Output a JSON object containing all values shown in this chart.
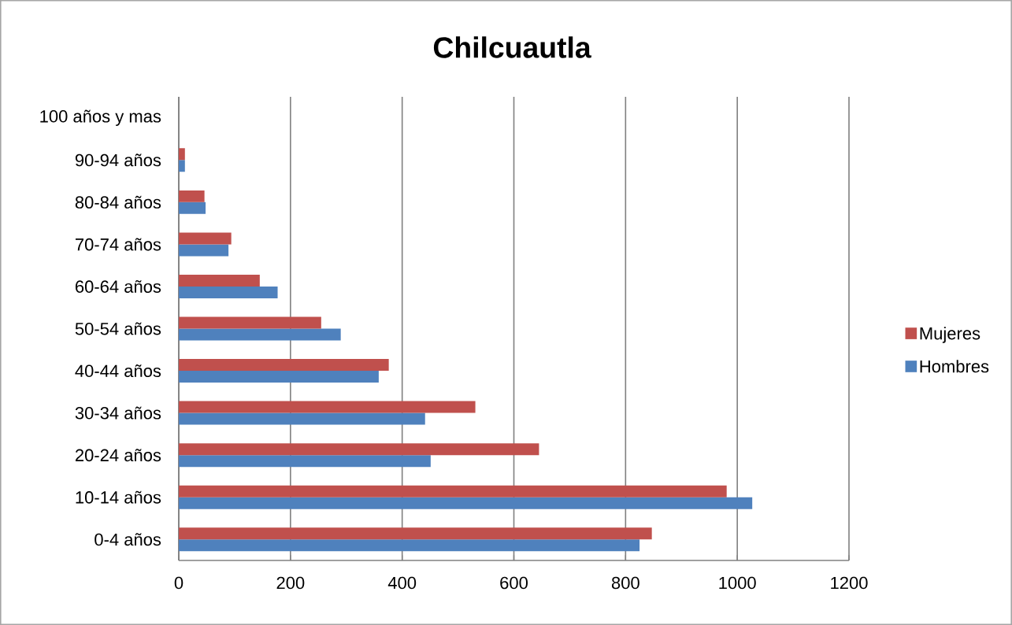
{
  "chart_data": {
    "type": "bar",
    "orientation": "horizontal",
    "title": "Chilcuautla",
    "categories": [
      "100 años y mas",
      "90-94 años",
      "80-84 años",
      "70-74 años",
      "60-64 años",
      "50-54 años",
      "40-44 años",
      "30-34 años",
      "20-24 años",
      "10-14 años",
      "0-4 años"
    ],
    "series": [
      {
        "name": "Hombres",
        "color": "#4f81bd",
        "values": [
          0,
          11,
          48,
          89,
          177,
          290,
          358,
          441,
          451,
          1027,
          825
        ]
      },
      {
        "name": "Mujeres",
        "color": "#c0504d",
        "values": [
          0,
          11,
          46,
          94,
          145,
          255,
          376,
          531,
          645,
          981,
          847
        ]
      }
    ],
    "xlim": [
      0,
      1200
    ],
    "xticks": [
      0,
      200,
      400,
      600,
      800,
      1000,
      1200
    ],
    "grid": "x",
    "legend": "right"
  }
}
